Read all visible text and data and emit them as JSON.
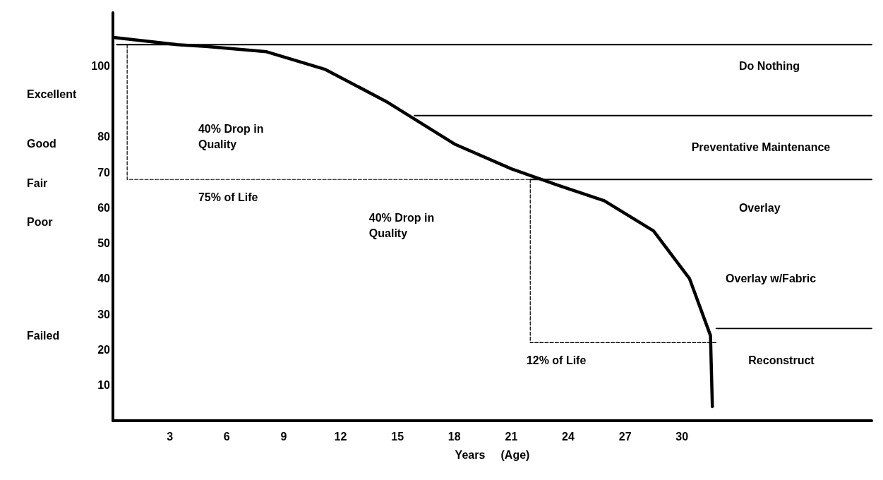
{
  "chart_data": {
    "type": "line",
    "xlabel": "Years     (Age)",
    "x": [
      0.1,
      3.4,
      4.9,
      8.1,
      11.2,
      14.4,
      18,
      21,
      23.4,
      25.9,
      28.5,
      30.4,
      31.5,
      31.6
    ],
    "series": [
      {
        "color": "#000000",
        "line_style": "solid",
        "values": [
          108,
          106,
          105.5,
          104,
          99,
          90,
          78,
          71,
          66.5,
          62,
          53.5,
          40,
          24,
          4
        ]
      },
      {
        "type": "line",
        "color": "#000000",
        "line_style": "solid",
        "x": [
          0.2,
          40
        ],
        "values": [
          106,
          106
        ]
      },
      {
        "type": "line",
        "color": "#000000",
        "line_style": "solid",
        "x": [
          15.9,
          40
        ],
        "values": [
          86,
          86
        ]
      },
      {
        "type": "line",
        "color": "#000000",
        "line_style": "solid",
        "x": [
          22,
          40
        ],
        "values": [
          68,
          68
        ]
      },
      {
        "type": "line",
        "color": "#000000",
        "line_style": "solid",
        "x": [
          31.8,
          40
        ],
        "values": [
          26,
          26
        ]
      },
      {
        "type": "line",
        "color": "#000000",
        "line_style": "dashed",
        "x": [
          0.75,
          0.75,
          22
        ],
        "values": [
          106,
          68,
          68
        ]
      },
      {
        "type": "line",
        "color": "#000000",
        "line_style": "dashed",
        "x": [
          22,
          22,
          31.8
        ],
        "values": [
          68,
          22,
          22
        ]
      }
    ],
    "xlim": [
      0,
      40
    ],
    "xticks": [
      3,
      6,
      9,
      12,
      15,
      18,
      21,
      24,
      27,
      30
    ],
    "ylim": [
      0,
      115
    ],
    "yticks": [
      10,
      20,
      30,
      40,
      50,
      60,
      70,
      80,
      100
    ],
    "annotations": [
      "Do Nothing",
      "Preventative Maintenance",
      "Overlay",
      "Overlay w/Fabric",
      "Reconstruct",
      "40% Drop in Quality",
      "75% of Life",
      "40% Drop in Quality",
      "12% of Life",
      "Excellent",
      "Good",
      "Fair",
      "Poor",
      "Failed"
    ],
    "grid": false,
    "marker": "none"
  }
}
